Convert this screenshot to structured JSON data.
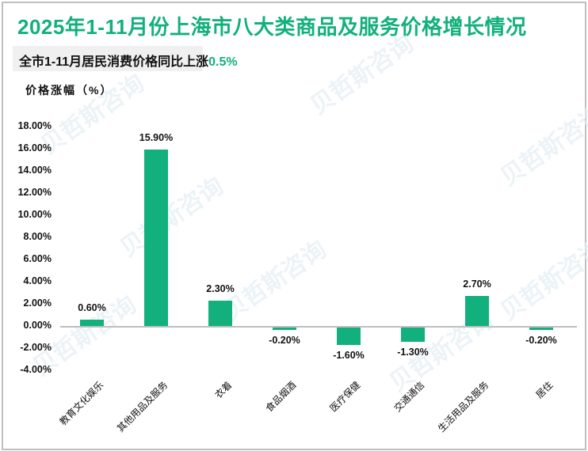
{
  "title": "2025年1-11月份上海市八大类商品及服务价格增长情况",
  "subtitle": {
    "prefix": "全市1-11月居民消费价格同比上涨",
    "highlight": "0.5%"
  },
  "y_axis_label": "价格涨幅（%）",
  "watermark": "贝哲斯咨询",
  "colors": {
    "accent": "#12b07c",
    "bar": "#12b07c",
    "axis": "#bfbfbf",
    "subtitle_bg": "#f0f0f0"
  },
  "y_ticks": [
    "18.00%",
    "16.00%",
    "14.00%",
    "12.00%",
    "10.00%",
    "8.00%",
    "6.00%",
    "4.00%",
    "2.00%",
    "0.00%",
    "-2.00%",
    "-4.00%"
  ],
  "bars": [
    {
      "category": "教育文化娱乐",
      "value": 0.6,
      "label": "0.60%"
    },
    {
      "category": "其他用品及服务",
      "value": 15.9,
      "label": "15.90%"
    },
    {
      "category": "衣着",
      "value": 2.3,
      "label": "2.30%"
    },
    {
      "category": "食品烟酒",
      "value": -0.2,
      "label": "-0.20%"
    },
    {
      "category": "医疗保健",
      "value": -1.6,
      "label": "-1.60%"
    },
    {
      "category": "交通通信",
      "value": -1.3,
      "label": "-1.30%"
    },
    {
      "category": "生活用品及服务",
      "value": 2.7,
      "label": "2.70%"
    },
    {
      "category": "居住",
      "value": -0.2,
      "label": "-0.20%"
    }
  ],
  "chart_data": {
    "type": "bar",
    "title": "2025年1-11月份上海市八大类商品及服务价格增长情况",
    "subtitle": "全市1-11月居民消费价格同比上涨0.5%",
    "xlabel": "",
    "ylabel": "价格涨幅（%）",
    "categories": [
      "教育文化娱乐",
      "其他用品及服务",
      "衣着",
      "食品烟酒",
      "医疗保健",
      "交通通信",
      "生活用品及服务",
      "居住"
    ],
    "values": [
      0.6,
      15.9,
      2.3,
      -0.2,
      -1.6,
      -1.3,
      2.7,
      -0.2
    ],
    "data_labels": [
      "0.60%",
      "15.90%",
      "2.30%",
      "-0.20%",
      "-1.60%",
      "-1.30%",
      "2.70%",
      "-0.20%"
    ],
    "ylim": [
      -4,
      18
    ],
    "y_tick_step": 2,
    "grid": false,
    "legend": "none"
  }
}
